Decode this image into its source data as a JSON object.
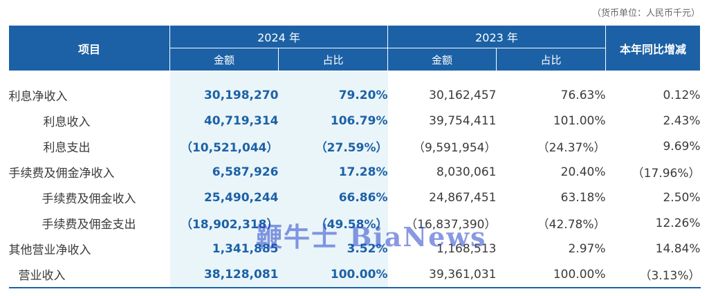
{
  "unit_note": "（货币单位：人民币千元）",
  "header": {
    "item": "项目",
    "year_2024": "2024 年",
    "year_2023": "2023 年",
    "yoy": "本年同比增减",
    "amount": "金额",
    "ratio": "占比"
  },
  "rows": [
    {
      "label": "利息净收入",
      "a24": "30,198,270",
      "r24": "79.20%",
      "a23": "30,162,457",
      "r23": "76.63%",
      "yoy": "0.12%"
    },
    {
      "label": "利息收入",
      "a24": "40,719,314",
      "r24": "106.79%",
      "a23": "39,754,411",
      "r23": "101.00%",
      "yoy": "2.43%"
    },
    {
      "label": "利息支出",
      "a24": "（10,521,044）",
      "r24": "（27.59%）",
      "a23": "（9,591,954）",
      "r23": "（24.37%）",
      "yoy": "9.69%"
    },
    {
      "label": "手续费及佣金净收入",
      "a24": "6,587,926",
      "r24": "17.28%",
      "a23": "8,030,061",
      "r23": "20.40%",
      "yoy": "（17.96%）"
    },
    {
      "label": "手续费及佣金收入",
      "a24": "25,490,244",
      "r24": "66.86%",
      "a23": "24,867,451",
      "r23": "63.18%",
      "yoy": "2.50%"
    },
    {
      "label": "手续费及佣金支出",
      "a24": "（18,902,318）",
      "r24": "（49.58%）",
      "a23": "（16,837,390）",
      "r23": "（42.78%）",
      "yoy": "12.26%"
    },
    {
      "label": "其他营业净收入",
      "a24": "1,341,885",
      "r24": "3.52%",
      "a23": "1,168,513",
      "r23": "2.97%",
      "yoy": "14.84%"
    },
    {
      "label": "营业收入",
      "a24": "38,128,081",
      "r24": "100.00%",
      "a23": "39,361,031",
      "r23": "100.00%",
      "yoy": "（3.13%）"
    }
  ],
  "watermark": "鞭牛士 BiaNews",
  "colors": {
    "header_bg": "#1c61a5",
    "highlight_bg": "#eaf5fa",
    "highlight_text": "#1c61a5"
  }
}
